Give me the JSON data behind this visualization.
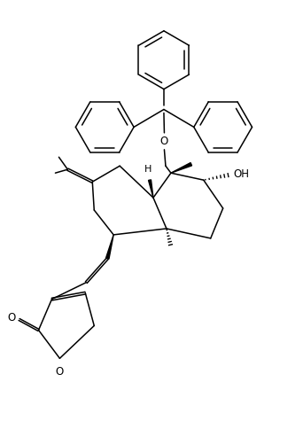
{
  "bg": "#ffffff",
  "lc": "#000000",
  "lw": 1.1,
  "figsize": [
    3.42,
    4.75
  ],
  "dpi": 100,
  "xlim": [
    0.0,
    3.42
  ],
  "ylim": [
    0.0,
    4.75
  ]
}
